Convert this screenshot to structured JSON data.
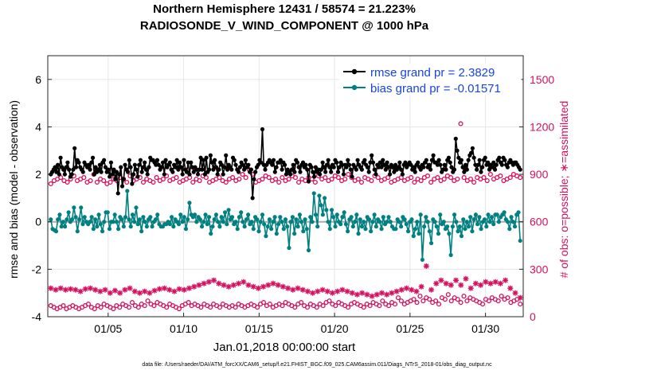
{
  "chart_data": {
    "type": "line",
    "title_line1": "Northern Hemisphere 12431 / 58574 = 21.223%",
    "title_line2": "RADIOSONDE_V_WIND_COMPONENT @ 1000 hPa",
    "ylabel_left": "rmse and bias (model - observation)",
    "ylabel_right": "# of obs: o=possible; ∗=assimilated",
    "xlabel": "Jan.01,2018 00:00:00 start",
    "footer": "data file: /Users/raeder/DAI/ATM_forcXX/CAM6_setup/f.e21.FHIST_BGC.f09_025.CAM6assim.011/Diags_NTrS_2018-01/obs_diag_output.nc",
    "x_range": [
      1,
      32.5
    ],
    "y_left_range": [
      -4,
      7
    ],
    "y_right_range": [
      0,
      1650
    ],
    "x_ticks": [
      5,
      10,
      15,
      20,
      25,
      30
    ],
    "x_tick_labels": [
      "01/05",
      "01/10",
      "01/15",
      "01/20",
      "01/25",
      "01/30"
    ],
    "y_left_ticks": [
      -4,
      -2,
      0,
      2,
      4,
      6
    ],
    "y_left_tick_labels": [
      "-4",
      "-2",
      "0",
      "2",
      "4",
      "6"
    ],
    "y_right_ticks": [
      0,
      300,
      600,
      900,
      1200,
      1500
    ],
    "y_right_tick_labels": [
      "0",
      "300",
      "600",
      "900",
      "1200",
      "1500"
    ],
    "colors": {
      "rmse": "#000000",
      "bias": "#008080",
      "obs": "#d6105f",
      "legend_text": "#1a44e0",
      "zero_line": "#aaaaaa"
    },
    "legend": [
      {
        "name": "rmse",
        "label": "rmse grand pr = 2.3829"
      },
      {
        "name": "bias",
        "label": "bias grand pr = -0.01571"
      }
    ],
    "series": [
      {
        "name": "rmse",
        "axis": "left",
        "values": [
          2.0,
          2.1,
          2.2,
          2.3,
          2.1,
          2.4,
          2.0,
          2.7,
          2.3,
          2.2,
          2.0,
          2.3,
          2.5,
          2.2,
          1.9,
          2.0,
          2.2,
          3.1,
          2.3,
          2.6,
          2.5,
          2.3,
          2.2,
          2.1,
          2.5,
          2.4,
          2.3,
          2.4,
          2.2,
          2.5,
          2.7,
          2.0,
          2.3,
          2.1,
          2.2,
          2.4,
          2.1,
          2.5,
          2.6,
          2.3,
          2.1,
          2.2,
          1.9,
          2.5,
          2.0,
          2.2,
          1.8,
          2.1,
          1.2,
          2.0,
          2.3,
          1.5,
          1.8,
          2.4,
          2.2,
          2.1,
          2.6,
          2.3,
          1.6,
          2.0,
          2.4,
          2.2,
          1.9,
          2.4,
          2.6,
          2.1,
          2.3,
          2.5,
          2.2,
          2.0,
          2.3,
          2.7,
          2.6,
          2.6,
          2.5,
          2.4,
          2.6,
          2.4,
          2.2,
          2.3,
          2.5,
          2.0,
          2.6,
          2.3,
          2.4,
          2.5,
          2.2,
          2.1,
          2.4,
          2.3,
          2.6,
          2.2,
          2.5,
          2.3,
          2.0,
          2.6,
          2.2,
          2.1,
          2.5,
          2.0,
          2.5,
          2.3,
          2.1,
          2.3,
          2.2,
          2.0,
          2.2,
          2.7,
          2.2,
          2.6,
          2.0,
          2.7,
          2.1,
          2.2,
          2.8,
          2.5,
          2.2,
          2.6,
          2.3,
          2.0,
          2.2,
          2.5,
          2.4,
          2.0,
          2.3,
          2.8,
          2.2,
          2.4,
          2.3,
          2.2,
          2.7,
          2.6,
          2.4,
          2.2,
          2.1,
          2.3,
          2.5,
          2.4,
          2.2,
          2.6,
          2.3,
          2.4,
          2.1,
          2.2,
          1.0,
          1.8,
          2.1,
          2.3,
          2.4,
          2.6,
          2.5,
          3.9,
          2.4,
          2.2,
          2.4,
          2.5,
          2.6,
          2.5,
          2.4,
          2.6,
          2.1,
          2.3,
          2.5,
          2.5,
          2.6,
          2.2,
          2.5,
          2.4,
          2.0,
          2.2,
          2.1,
          2.0,
          2.2,
          2.4,
          2.1,
          2.6,
          2.5,
          2.3,
          2.1,
          2.4,
          2.5,
          2.3,
          2.4,
          2.2,
          1.7,
          2.4,
          2.3,
          2.1,
          1.9,
          2.3,
          2.1,
          2.2,
          2.0,
          2.2,
          2.5,
          2.3,
          2.1,
          2.4,
          2.6,
          2.3,
          2.1,
          2.4,
          2.3,
          2.6,
          2.5,
          2.1,
          2.3,
          2.5,
          2.4,
          2.0,
          2.4,
          2.3,
          2.6,
          2.4,
          2.2,
          1.9,
          2.4,
          2.3,
          2.2,
          2.6,
          2.4,
          2.3,
          2.2,
          2.5,
          2.6,
          2.4,
          2.3,
          2.1,
          2.5,
          2.8,
          2.5,
          2.2,
          2.0,
          2.4,
          2.3,
          2.5,
          2.3,
          2.6,
          2.4,
          2.2,
          2.5,
          2.3,
          2.0,
          2.4,
          2.3,
          2.1,
          2.4,
          2.2,
          2.3,
          2.5,
          2.2,
          2.0,
          2.4,
          2.5,
          2.3,
          2.4,
          2.5,
          2.4,
          2.2,
          2.3,
          2.1,
          2.4,
          2.5,
          2.3,
          2.2,
          2.4,
          2.3,
          2.5,
          2.6,
          2.3,
          2.4,
          2.2,
          2.6,
          2.8,
          2.5,
          2.5,
          2.4,
          2.6,
          2.4,
          2.1,
          2.2,
          2.4,
          2.2,
          2.6,
          2.7,
          2.5,
          2.3,
          2.1,
          2.2,
          3.5,
          3.0,
          2.7,
          2.5,
          2.6,
          2.3,
          2.1,
          2.4,
          2.2,
          2.6,
          2.8,
          2.9,
          3.1,
          2.7,
          2.4,
          2.2,
          2.4,
          2.6,
          2.1,
          2.3,
          2.6,
          2.7,
          2.4,
          2.5,
          2.2,
          2.4,
          2.3,
          2.5,
          2.2,
          2.4,
          2.6,
          2.7,
          2.5,
          2.4,
          2.7,
          2.6,
          2.4,
          2.3,
          2.5,
          2.6,
          2.5,
          2.4,
          2.5,
          2.5,
          2.4,
          2.3,
          2.2
        ]
      },
      {
        "name": "bias",
        "axis": "left",
        "values": [
          0.1,
          -0.3,
          -0.35,
          -0.4,
          0.1,
          0.3,
          -0.2,
          0.0,
          -0.2,
          0.1,
          0.4,
          0.0,
          0.1,
          0.6,
          0.2,
          -0.4,
          0.1,
          0.6,
          -0.1,
          0.2,
          0.0,
          -0.1,
          0.0,
          0.2,
          -0.3,
          0.1,
          -0.2,
          0.3,
          -0.1,
          -0.4,
          0.0,
          0.4,
          0.4,
          -0.3,
          0.0,
          0.0,
          0.3,
          0.0,
          -0.3,
          0.2,
          0.1,
          -0.2,
          0.2,
          1.3,
          0.1,
          -0.2,
          0.3,
          0.0,
          0.6,
          -0.1,
          0.1,
          -0.4,
          0.2,
          0.0,
          -0.2,
          0.1,
          0.2,
          -0.2,
          0.0,
          0.1,
          0.3,
          -0.1,
          -0.2,
          -0.2,
          -0.1,
          -0.1,
          0.0,
          -0.1,
          0.2,
          -0.2,
          0.1,
          0.0,
          -0.1,
          0.3,
          0.0,
          0.2,
          -0.3,
          0.1,
          0.8,
          0.3,
          0.2,
          0.3,
          0.0,
          0.2,
          0.1,
          -0.2,
          0.0,
          0.3,
          -0.1,
          0.2,
          -0.5,
          -0.2,
          0.1,
          0.3,
          0.0,
          -0.2,
          0.2,
          0.0,
          0.4,
          -0.1,
          0.5,
          0.1,
          0.2,
          -0.1,
          0.0,
          -0.3,
          0.2,
          0.4,
          0.0,
          -0.2,
          0.1,
          0.3,
          -0.1,
          0.0,
          -0.3,
          0.2,
          0.1,
          -0.4,
          0.0,
          0.3,
          -0.1,
          -0.6,
          -0.2,
          0.1,
          -0.3,
          0.0,
          0.2,
          -0.5,
          -0.1,
          0.2,
          0.0,
          -0.3,
          0.1,
          -0.2,
          -1.1,
          0.0,
          0.2,
          -0.5,
          0.1,
          -0.2,
          0.3,
          0.0,
          -0.4,
          0.1,
          -0.3,
          -1.2,
          0.2,
          0.0,
          1.2,
          0.3,
          -0.2,
          1.1,
          0.7,
          0.3,
          1.0,
          0.5,
          0.0,
          -0.3,
          0.5,
          0.2,
          -0.2,
          0.3,
          0.0,
          -0.1,
          0.2,
          0.4,
          -0.1,
          -0.4,
          0.1,
          0.2,
          -0.2,
          0.0,
          0.3,
          -0.5,
          0.1,
          -0.2,
          0.0,
          -0.3,
          0.2,
          0.1,
          -0.4,
          0.0,
          0.3,
          -0.2,
          0.1,
          0.0,
          -0.3,
          0.2,
          -0.1,
          0.0,
          0.2,
          0.0,
          -0.2,
          -0.3,
          -0.3,
          0.1,
          0.0,
          -0.2,
          0.2,
          0.1,
          -0.1,
          -0.4,
          0.0,
          0.1,
          -0.6,
          -0.3,
          0.0,
          -0.5,
          0.3,
          -1.6,
          -0.2,
          0.2,
          0.0,
          -0.4,
          -0.9,
          0.1,
          0.0,
          -0.2,
          -0.5,
          0.3,
          -0.1,
          0.0,
          -0.3,
          -0.2,
          -0.5,
          -1.4,
          -0.2,
          0.3,
          0.0,
          -0.4,
          -0.2,
          -0.6,
          0.1,
          -0.3,
          0.0,
          -0.2,
          0.2,
          -0.4,
          0.1,
          0.3,
          -0.1,
          0.2,
          -0.3,
          0.0,
          0.1,
          -0.2,
          0.3,
          0.0,
          0.2,
          -0.1,
          0.3,
          0.3,
          0.0,
          0.2,
          0.3,
          0.4,
          0.1,
          0.0,
          -0.3,
          0.2,
          0.0,
          -0.2,
          0.3,
          0.4,
          -0.8
        ]
      },
      {
        "name": "possible",
        "axis": "right",
        "marker": "circle",
        "values": [
          840,
          860,
          870,
          880,
          860,
          850,
          870,
          890,
          860,
          870,
          880,
          850,
          860,
          900,
          850,
          870,
          860,
          840,
          850,
          870,
          860,
          880,
          870,
          850,
          890,
          860,
          870,
          880,
          850,
          870,
          860,
          850,
          880,
          860,
          870,
          890,
          860,
          870,
          880,
          850,
          860,
          870,
          880,
          850,
          870,
          860,
          890,
          880,
          850,
          860,
          870,
          880,
          860,
          850,
          870,
          880,
          860,
          870,
          900,
          880,
          930,
          900,
          850,
          860,
          870,
          890,
          880,
          860,
          870,
          850,
          880,
          860,
          870,
          890,
          880,
          850,
          870,
          860,
          880,
          870,
          850,
          890,
          870,
          880,
          860,
          870,
          890,
          880,
          860,
          870,
          900,
          880,
          860,
          870,
          850,
          880,
          870,
          860,
          890,
          880,
          860,
          870,
          880,
          850,
          860,
          870,
          880,
          860,
          870,
          880,
          850,
          870,
          860,
          880,
          890,
          850,
          870,
          880,
          860,
          870,
          890,
          880,
          860,
          870,
          1220,
          880,
          860,
          870,
          850,
          880,
          870,
          880,
          860,
          900,
          870,
          880,
          890,
          860,
          870,
          880,
          900,
          890,
          880
        ]
      },
      {
        "name": "possible_low",
        "axis": "right",
        "marker": "circle",
        "values": [
          70,
          60,
          50,
          60,
          70,
          50,
          60,
          70,
          60,
          50,
          60,
          70,
          80,
          60,
          50,
          70,
          60,
          80,
          70,
          60,
          50,
          70,
          60,
          80,
          70,
          60,
          90,
          70,
          60,
          80,
          70,
          100,
          80,
          70,
          90,
          80,
          70,
          60,
          80,
          70,
          60,
          50,
          70,
          80,
          90,
          70,
          80,
          70,
          60,
          80,
          70,
          60,
          80,
          70,
          60,
          80,
          70,
          60,
          70,
          60,
          80,
          70,
          60,
          70,
          80,
          70,
          60,
          80,
          90,
          70,
          80,
          60,
          70,
          80,
          70,
          90,
          80,
          70,
          60,
          80,
          90,
          70,
          60,
          80,
          70,
          60,
          80,
          70,
          90,
          100,
          80,
          70,
          90,
          80,
          70,
          60,
          80,
          90,
          80,
          70,
          60,
          80,
          70,
          90,
          80,
          70,
          100,
          80,
          70,
          90,
          80,
          120,
          100,
          80,
          90,
          100,
          110,
          90,
          130,
          100,
          120,
          110,
          90,
          100,
          80,
          120,
          110,
          140,
          100,
          120,
          110,
          90,
          130,
          100,
          120,
          110,
          100,
          90,
          80,
          110,
          100,
          120,
          110,
          100,
          130,
          110,
          120,
          90,
          100,
          110,
          80
        ]
      },
      {
        "name": "assimilated",
        "axis": "right",
        "marker": "star",
        "values": [
          180,
          170,
          180,
          170,
          175,
          170,
          160,
          175,
          180,
          170,
          160,
          170,
          150,
          165,
          150,
          170,
          180,
          160,
          150,
          160,
          150,
          165,
          175,
          180,
          170,
          160,
          175,
          170,
          180,
          190,
          200,
          210,
          220,
          230,
          210,
          200,
          190,
          200,
          210,
          220,
          200,
          190,
          180,
          190,
          200,
          210,
          200,
          190,
          180,
          170,
          180,
          170,
          160,
          150,
          160,
          170,
          160,
          150,
          160,
          170,
          160,
          150,
          140,
          150,
          140,
          130,
          140,
          150,
          140,
          150,
          160,
          170,
          180,
          170,
          160,
          190,
          320,
          170,
          210,
          230,
          210,
          200,
          230,
          200,
          240,
          180,
          210,
          200,
          220,
          210,
          220,
          210,
          230,
          180,
          150,
          120
        ]
      }
    ]
  }
}
